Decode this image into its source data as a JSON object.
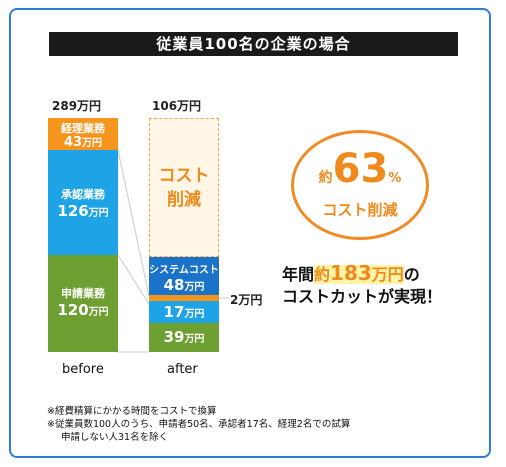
{
  "header": {
    "title": "従業員100名の企業の場合"
  },
  "chart_data": {
    "type": "bar",
    "unit": "万円",
    "categories": [
      "before",
      "after"
    ],
    "totals": [
      289,
      106
    ],
    "totals_text": [
      "289万円",
      "106万円"
    ],
    "before_segments": [
      {
        "name": "経理業務",
        "value": 43,
        "color": "#f5951d"
      },
      {
        "name": "承認業務",
        "value": 126,
        "color": "#1ea3e6"
      },
      {
        "name": "申請業務",
        "value": 120,
        "color": "#6e9f32"
      }
    ],
    "after_segments": [
      {
        "name": "システムコスト",
        "value": 48,
        "color": "#1a73c9"
      },
      {
        "name": "",
        "value": 2,
        "color": "#f5951d"
      },
      {
        "name": "",
        "value": 17,
        "color": "#1ea3e6"
      },
      {
        "name": "",
        "value": 39,
        "color": "#6e9f32"
      }
    ],
    "reduction_label": "コスト\n削減",
    "small_segment_label": "2万円"
  },
  "highlight": {
    "prefix": "約",
    "percent": "63",
    "percent_unit": "%",
    "subtitle": "コスト削減"
  },
  "summary": {
    "line1_prefix": "年間",
    "line1_approx": "約",
    "line1_amount": "183",
    "line1_unit": "万円",
    "line1_suffix": "の",
    "line2": "コストカットが実現！"
  },
  "notes": [
    "※経費精算にかかる時間をコストで換算",
    "※従業員数100人のうち、申請者50名、承認者17名、経理2名での試算",
    "申請しない人31名を除く"
  ]
}
